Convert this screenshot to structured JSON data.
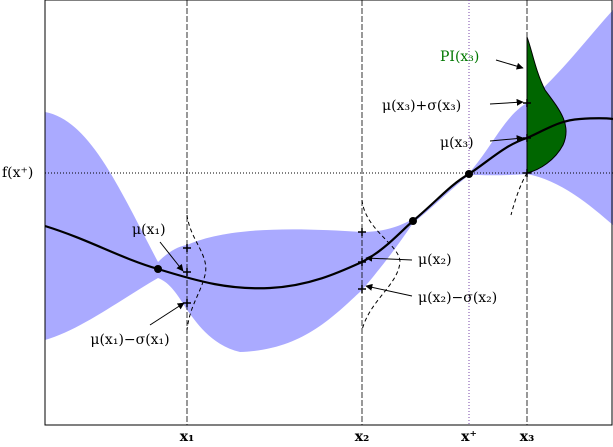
{
  "labels": {
    "f_best": "f(x⁺)",
    "mu_x1": "μ(x₁)",
    "mu_minus_sigma_x1": "μ(x₁)−σ(x₁)",
    "mu_x2": "μ(x₂)",
    "mu_minus_sigma_x2": "μ(x₂)−σ(x₂)",
    "pi_x3": "PI(x₃)",
    "mu_plus_sigma_x3": "μ(x₃)+σ(x₃)",
    "mu_x3": "μ(x₃)"
  },
  "x_axis": {
    "x1": "x₁",
    "x2": "x₂",
    "x_best": "x⁺",
    "x3": "x₃"
  }
}
